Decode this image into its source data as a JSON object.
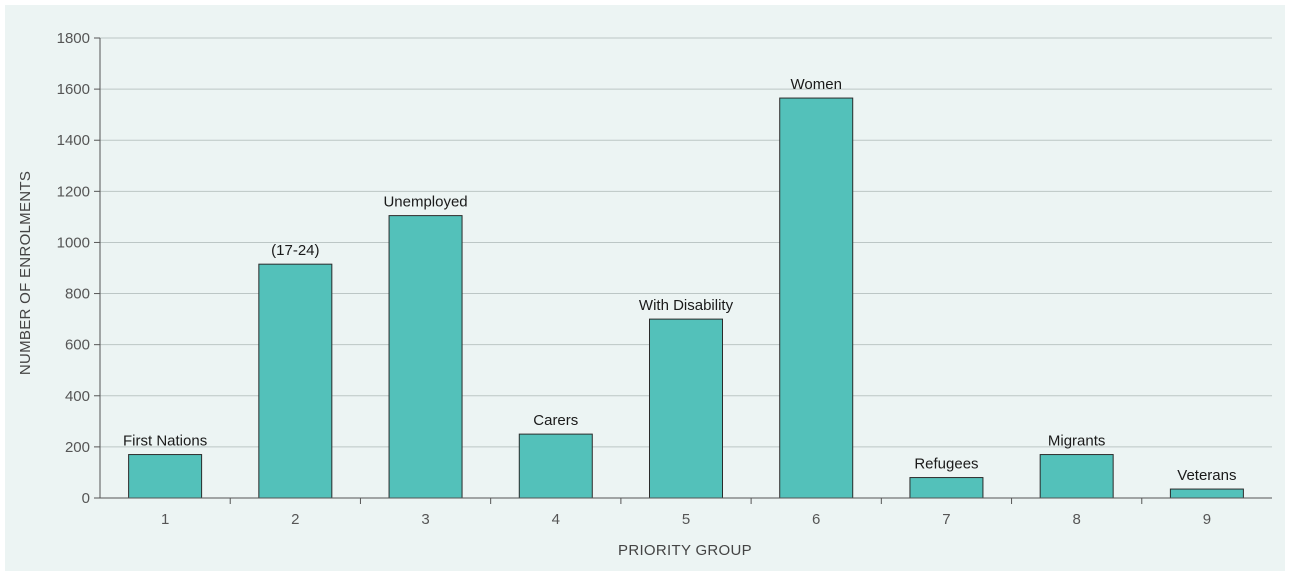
{
  "chart_data": {
    "type": "bar",
    "categories": [
      "1",
      "2",
      "3",
      "4",
      "5",
      "6",
      "7",
      "8",
      "9"
    ],
    "values": [
      170,
      915,
      1105,
      250,
      700,
      1565,
      80,
      170,
      35
    ],
    "data_labels": [
      "First Nations",
      "(17-24)",
      "Unemployed",
      "Carers",
      "With Disability",
      "Women",
      "Refugees",
      "Migrants",
      "Veterans"
    ],
    "title": "",
    "xlabel": "PRIORITY GROUP",
    "ylabel": "NUMBER OF ENROLMENTS",
    "ylim": [
      0,
      1800
    ],
    "yticks": [
      0,
      200,
      400,
      600,
      800,
      1000,
      1200,
      1400,
      1600,
      1800
    ],
    "grid": true,
    "legend": "none",
    "colors": {
      "background": "#ecf4f3",
      "bar_fill": "#53c1ba",
      "bar_stroke": "#2b2b2b",
      "grid": "#bcc6c5",
      "axis": "#555555"
    }
  }
}
